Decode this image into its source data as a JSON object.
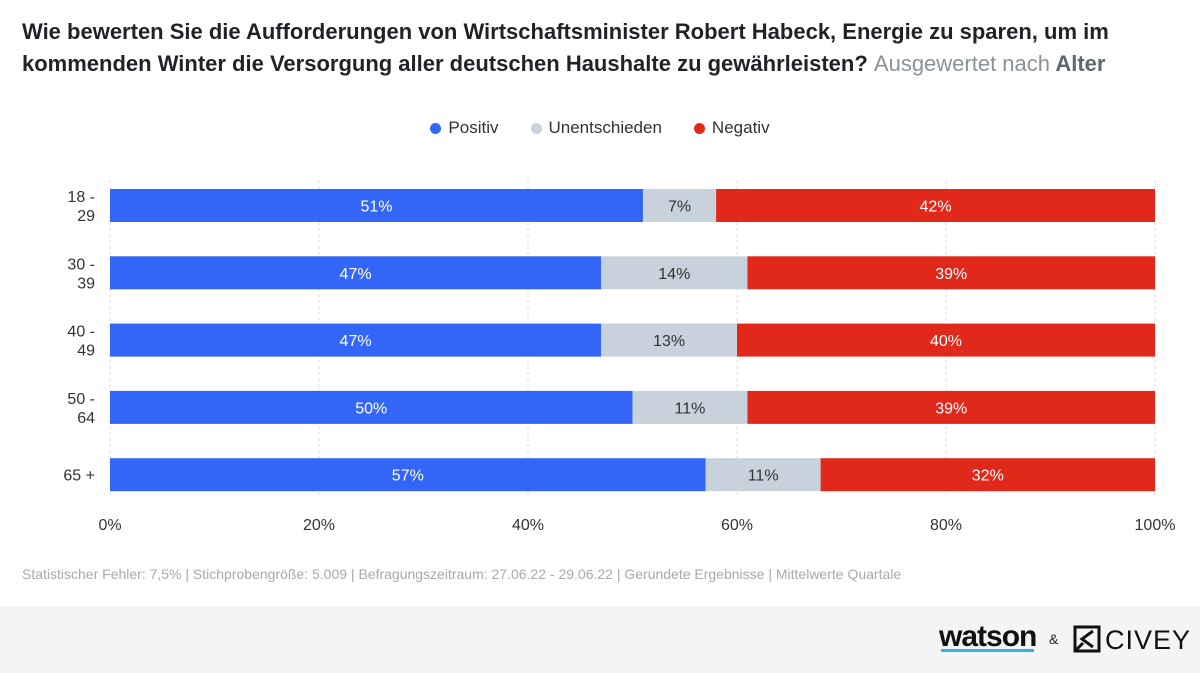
{
  "title": {
    "main": "Wie bewerten Sie die Aufforderungen von Wirtschaftsminister Robert Habeck, Energie zu sparen, um im kommenden Winter die Versorgung aller deutschen Haushalte zu gewährleisten?",
    "sub_prefix": "Ausgewertet nach",
    "sub_key": "Alter"
  },
  "legend": [
    {
      "label": "Positiv",
      "color": "#3366f6"
    },
    {
      "label": "Unentschieden",
      "color": "#c8d2dc"
    },
    {
      "label": "Negativ",
      "color": "#e0291b"
    }
  ],
  "chart_data": {
    "type": "bar",
    "orientation": "horizontal",
    "stacked": true,
    "categories": [
      "18 -\n29",
      "30 -\n39",
      "40 -\n49",
      "50 -\n64",
      "65 +"
    ],
    "series": [
      {
        "name": "Positiv",
        "color": "#3366f6",
        "label_color": "#ffffff",
        "values": [
          51,
          47,
          47,
          50,
          57
        ]
      },
      {
        "name": "Unentschieden",
        "color": "#c8d2dc",
        "label_color": "#333333",
        "values": [
          7,
          14,
          13,
          11,
          11
        ]
      },
      {
        "name": "Negativ",
        "color": "#e0291b",
        "label_color": "#ffffff",
        "values": [
          42,
          39,
          40,
          39,
          32
        ]
      }
    ],
    "xlim": [
      0,
      100
    ],
    "x_ticks": [
      0,
      20,
      40,
      60,
      80,
      100
    ],
    "x_tick_labels": [
      "0%",
      "20%",
      "40%",
      "60%",
      "80%",
      "100%"
    ],
    "value_suffix": "%",
    "grid": true,
    "legend_position": "top-center"
  },
  "footnote": "Statistischer Fehler: 7,5% | Stichprobengröße: 5.009 | Befragungszeitraum: 27.06.22 - 29.06.22 | Gerundete Ergebnisse | Mittelwerte Quartale",
  "footer": {
    "brand_left": "watson",
    "separator": "&",
    "brand_right": "CIVEY"
  }
}
